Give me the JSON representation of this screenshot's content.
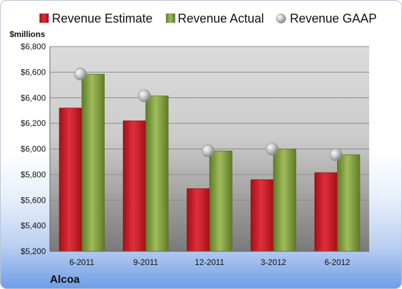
{
  "chart_data": {
    "type": "bar",
    "categories": [
      "6-2011",
      "9-2011",
      "12-2011",
      "3-2012",
      "6-2012"
    ],
    "series": [
      {
        "name": "Revenue Estimate",
        "type": "bar",
        "color": "#cc1a24",
        "values": [
          6320,
          6220,
          5690,
          5760,
          5815
        ]
      },
      {
        "name": "Revenue Actual",
        "type": "bar",
        "color": "#7f9e3c",
        "values": [
          6585,
          6415,
          5985,
          6000,
          5955
        ]
      },
      {
        "name": "Revenue GAAP",
        "type": "scatter",
        "color": "#a6a6a6",
        "values": [
          6585,
          6415,
          5985,
          6000,
          5955
        ]
      }
    ],
    "ylabel": "$millions",
    "ylim": [
      5200,
      6800
    ],
    "yticks": [
      5200,
      5400,
      5600,
      5800,
      6000,
      6200,
      6400,
      6600,
      6800
    ],
    "ytick_labels": [
      "$5,200",
      "$5,400",
      "$5,600",
      "$5,800",
      "$6,000",
      "$6,200",
      "$6,400",
      "$6,600",
      "$6,800"
    ],
    "grid": true,
    "legend_position": "top",
    "company": "Alcoa"
  }
}
